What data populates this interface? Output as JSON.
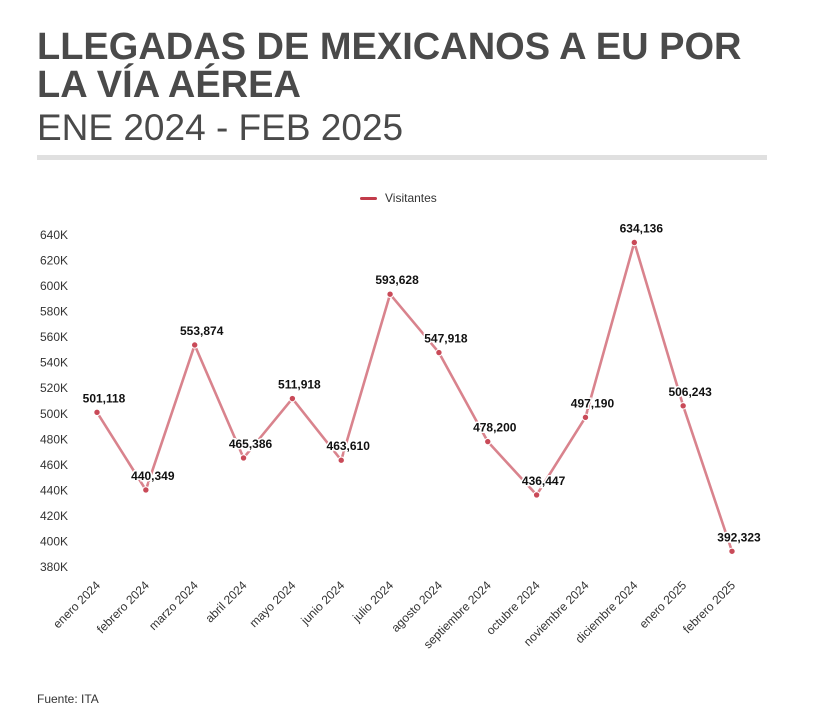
{
  "header": {
    "title": "LLEGADAS DE MEXICANOS A EU POR LA VÍA AÉREA",
    "subtitle": "ENE 2024 - FEB 2025"
  },
  "legend": {
    "label": "Visitantes",
    "color": "#c23b4a"
  },
  "footer": {
    "source": "Fuente: ITA"
  },
  "chart_data": {
    "type": "line",
    "title": "LLEGADAS DE MEXICANOS A EU POR LA VÍA AÉREA",
    "subtitle": "ENE 2024 - FEB 2025",
    "xlabel": "",
    "ylabel": "",
    "categories": [
      "enero 2024",
      "febrero 2024",
      "marzo 2024",
      "abril 2024",
      "mayo 2024",
      "junio 2024",
      "julio 2024",
      "agosto 2024",
      "septiembre 2024",
      "octubre 2024",
      "noviembre 2024",
      "diciembre 2024",
      "enero 2025",
      "febrero 2025"
    ],
    "series": [
      {
        "name": "Visitantes",
        "values": [
          501118,
          440349,
          553874,
          465386,
          511918,
          463610,
          593628,
          547918,
          478200,
          436447,
          497190,
          634136,
          506243,
          392323
        ],
        "labels": [
          "501,118",
          "440,349",
          "553,874",
          "465,386",
          "511,918",
          "463,610",
          "593,628",
          "547,918",
          "478,200",
          "436,447",
          "497,190",
          "634,136",
          "506,243",
          "392,323"
        ],
        "line_color": "#d9838d",
        "point_color": "#c94a58"
      }
    ],
    "ylim": [
      380000,
      640000
    ],
    "yticks": [
      380000,
      400000,
      420000,
      440000,
      460000,
      480000,
      500000,
      520000,
      540000,
      560000,
      580000,
      600000,
      620000,
      640000
    ],
    "ytick_labels": [
      "380K",
      "400K",
      "420K",
      "440K",
      "460K",
      "480K",
      "500K",
      "520K",
      "540K",
      "560K",
      "580K",
      "600K",
      "620K",
      "640K"
    ],
    "grid": false,
    "legend_position": "top-center"
  }
}
